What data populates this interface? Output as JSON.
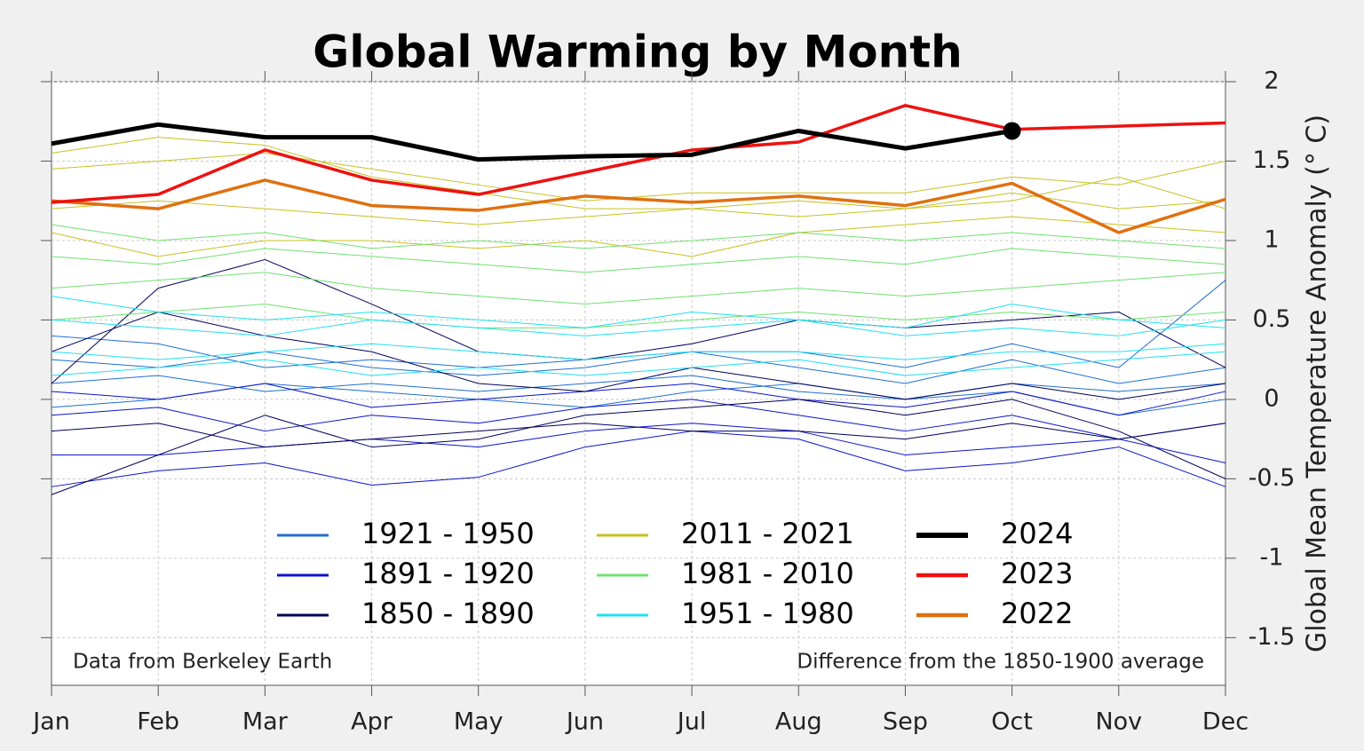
{
  "chart_data": {
    "type": "line",
    "title": "Global Warming by Month",
    "y_label": "Global Mean Temperature Anomaly (° C)",
    "annotations": [
      "Data from Berkeley Earth",
      "Difference from the 1850-1900 average"
    ],
    "categories": [
      "Jan",
      "Feb",
      "Mar",
      "Apr",
      "May",
      "Jun",
      "Jul",
      "Aug",
      "Sep",
      "Oct",
      "Nov",
      "Dec"
    ],
    "ylim": [
      -1.8,
      2
    ],
    "yticks": [
      -1.5,
      -1,
      -0.5,
      0,
      0.5,
      1,
      1.5,
      2
    ],
    "grid": true,
    "series": [
      {
        "name": "1921 - 1950",
        "color": "#1f6fd0",
        "lines": [
          [
            0.1,
            0.15,
            0.05,
            0.1,
            0.05,
            0.1,
            0.15,
            0.05,
            0,
            0.1,
            0.05,
            0.1
          ],
          [
            -0.05,
            0,
            0.1,
            0.05,
            0,
            -0.05,
            0.05,
            0.1,
            0,
            0.05,
            -0.1,
            0
          ],
          [
            0.25,
            0.2,
            0.3,
            0.2,
            0.15,
            0.2,
            0.3,
            0.2,
            0.1,
            0.25,
            0.1,
            0.2
          ],
          [
            0.4,
            0.35,
            0.2,
            0.25,
            0.2,
            0.25,
            0.3,
            0.3,
            0.2,
            0.35,
            0.2,
            0.75
          ]
        ]
      },
      {
        "name": "1891 - 1920",
        "color": "#0a14c8",
        "lines": [
          [
            -0.35,
            -0.35,
            -0.3,
            -0.25,
            -0.3,
            -0.2,
            -0.15,
            -0.2,
            -0.35,
            -0.3,
            -0.25,
            -0.4
          ],
          [
            -0.1,
            -0.05,
            -0.2,
            -0.1,
            -0.15,
            -0.05,
            0,
            -0.1,
            -0.2,
            -0.1,
            -0.25,
            -0.15
          ],
          [
            0.05,
            0,
            0.1,
            -0.05,
            0,
            0.05,
            0.1,
            0,
            -0.05,
            0.05,
            -0.1,
            0.05
          ],
          [
            -0.55,
            -0.45,
            -0.4,
            -0.54,
            -0.49,
            -0.3,
            -0.2,
            -0.25,
            -0.45,
            -0.4,
            -0.3,
            -0.55
          ]
        ]
      },
      {
        "name": "1850 - 1890",
        "color": "#00005a",
        "lines": [
          [
            -0.2,
            -0.15,
            -0.3,
            -0.25,
            -0.2,
            -0.15,
            -0.2,
            -0.2,
            -0.25,
            -0.15,
            -0.25,
            -0.15
          ],
          [
            0.3,
            0.55,
            0.4,
            0.3,
            0.1,
            0.05,
            0.2,
            0.1,
            0,
            0.1,
            0,
            0.1
          ],
          [
            -0.6,
            -0.35,
            -0.1,
            -0.3,
            -0.25,
            -0.1,
            -0.05,
            0,
            -0.1,
            0,
            -0.2,
            -0.5
          ],
          [
            0.1,
            0.7,
            0.88,
            0.6,
            0.3,
            0.25,
            0.35,
            0.5,
            0.45,
            0.5,
            0.55,
            0.2
          ]
        ]
      },
      {
        "name": "2011 - 2021",
        "color": "#c8c020",
        "lines": [
          [
            1.2,
            1.25,
            1.2,
            1.15,
            1.1,
            1.15,
            1.2,
            1.25,
            1.2,
            1.3,
            1.2,
            1.25
          ],
          [
            1.45,
            1.5,
            1.55,
            1.45,
            1.35,
            1.25,
            1.3,
            1.3,
            1.3,
            1.4,
            1.35,
            1.5
          ],
          [
            1.05,
            0.9,
            1,
            1,
            0.95,
            1,
            0.9,
            1.05,
            1.1,
            1.15,
            1.1,
            1.05
          ],
          [
            1.55,
            1.65,
            1.6,
            1.4,
            1.3,
            1.2,
            1.2,
            1.15,
            1.2,
            1.25,
            1.4,
            1.2
          ]
        ]
      },
      {
        "name": "1981 - 2010",
        "color": "#70e070",
        "lines": [
          [
            0.7,
            0.75,
            0.8,
            0.7,
            0.65,
            0.6,
            0.65,
            0.7,
            0.65,
            0.7,
            0.75,
            0.8
          ],
          [
            0.9,
            0.85,
            0.95,
            0.9,
            0.85,
            0.8,
            0.85,
            0.9,
            0.85,
            0.95,
            0.9,
            0.85
          ],
          [
            0.5,
            0.55,
            0.6,
            0.5,
            0.45,
            0.45,
            0.5,
            0.55,
            0.5,
            0.55,
            0.5,
            0.55
          ],
          [
            1.1,
            1,
            1.05,
            0.95,
            1,
            0.95,
            1,
            1.05,
            1,
            1.05,
            1,
            0.95
          ]
        ]
      },
      {
        "name": "1951 - 1980",
        "color": "#20e0f0",
        "lines": [
          [
            0.3,
            0.25,
            0.3,
            0.35,
            0.3,
            0.25,
            0.3,
            0.3,
            0.25,
            0.3,
            0.3,
            0.35
          ],
          [
            0.5,
            0.45,
            0.4,
            0.5,
            0.45,
            0.4,
            0.45,
            0.5,
            0.4,
            0.45,
            0.4,
            0.5
          ],
          [
            0.15,
            0.2,
            0.25,
            0.15,
            0.2,
            0.15,
            0.2,
            0.25,
            0.15,
            0.2,
            0.25,
            0.3
          ],
          [
            0.65,
            0.55,
            0.5,
            0.55,
            0.5,
            0.45,
            0.55,
            0.5,
            0.45,
            0.6,
            0.5,
            0.45
          ]
        ]
      },
      {
        "name": "2024",
        "color": "#000000",
        "values": [
          1.61,
          1.73,
          1.65,
          1.65,
          1.51,
          1.53,
          1.54,
          1.69,
          1.58,
          1.69,
          null,
          null
        ]
      },
      {
        "name": "2023",
        "color": "#ee1111",
        "values": [
          1.24,
          1.29,
          1.57,
          1.38,
          1.29,
          1.43,
          1.57,
          1.62,
          1.85,
          1.7,
          1.72,
          1.74
        ]
      },
      {
        "name": "2022",
        "color": "#e07010",
        "values": [
          1.25,
          1.2,
          1.38,
          1.22,
          1.19,
          1.28,
          1.24,
          1.28,
          1.22,
          1.36,
          1.05,
          1.26
        ]
      }
    ]
  }
}
